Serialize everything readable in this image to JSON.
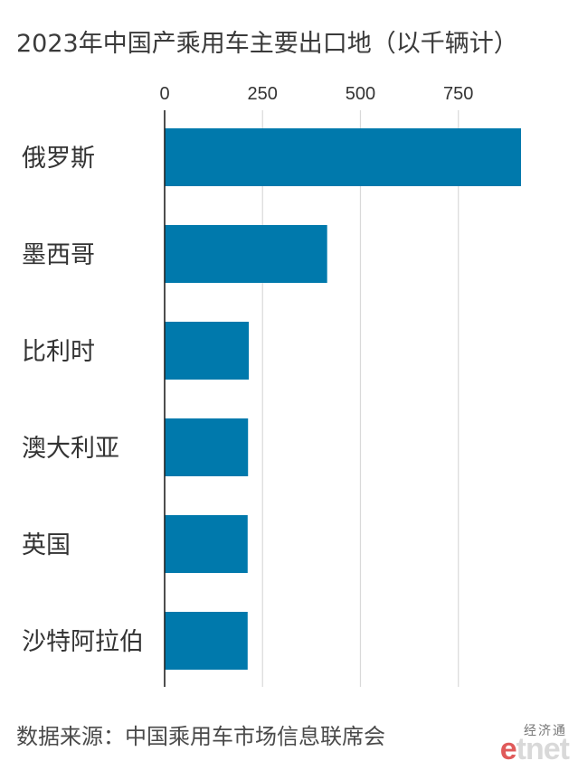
{
  "chart_data": {
    "type": "bar",
    "orientation": "horizontal",
    "title": "2023年中国产乘用车主要出口地（以千辆计）",
    "categories": [
      "俄罗斯",
      "墨西哥",
      "比利时",
      "澳大利亚",
      "英国",
      "沙特阿拉伯"
    ],
    "values": [
      910,
      415,
      215,
      213,
      212,
      212
    ],
    "xlim": [
      0,
      910
    ],
    "xticks": [
      0,
      250,
      500,
      750
    ],
    "tick_labels": [
      "0",
      "250",
      "500",
      "750"
    ],
    "xlabel": "",
    "ylabel": "",
    "grid": true,
    "bar_color": "#0079ac",
    "grid_color": "#d9d9d9"
  },
  "footer": {
    "source": "数据来源：中国乘用车市场信息联席会"
  },
  "logo": {
    "top_text": "经济通",
    "brand_e": "e",
    "brand_rest": "tnet"
  }
}
